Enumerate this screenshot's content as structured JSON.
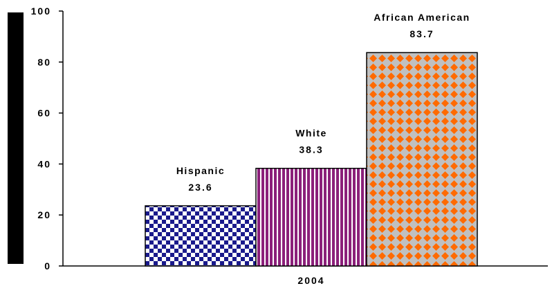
{
  "chart_data": {
    "type": "bar",
    "categories": [
      "2004"
    ],
    "series": [
      {
        "name": "Hispanic",
        "values": [
          23.6
        ],
        "pattern": "checker",
        "colors": [
          "#1a1a8c",
          "#ffffff"
        ]
      },
      {
        "name": "White",
        "values": [
          38.3
        ],
        "pattern": "vertical-stripes",
        "colors": [
          "#8b1f7a",
          "#ffffff"
        ]
      },
      {
        "name": "African American",
        "values": [
          83.7
        ],
        "pattern": "diamond-lattice",
        "colors": [
          "#ff6a00",
          "#c0c0c0"
        ]
      }
    ],
    "ylim": [
      0,
      100
    ],
    "yticks": [
      0,
      20,
      40,
      60,
      80,
      100
    ],
    "grid": false,
    "legend": "none"
  }
}
